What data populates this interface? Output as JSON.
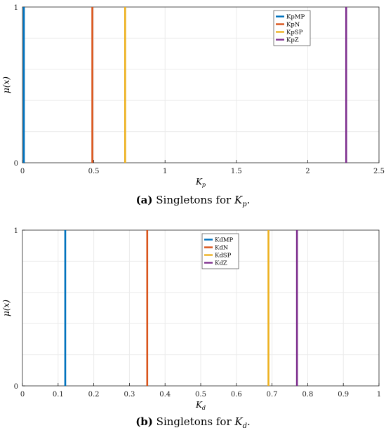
{
  "charts": [
    {
      "caption": {
        "label": "(a)",
        "text": "Singletons for ",
        "var": "K",
        "sub": "p",
        "end": "."
      },
      "chart_data": {
        "type": "line",
        "xlabel": "K",
        "xlabel_sub": "p",
        "ylabel": "μ(x)",
        "xlim": [
          0,
          2.5
        ],
        "ylim": [
          0,
          1
        ],
        "xticks": [
          "0",
          "0.5",
          "1",
          "1.5",
          "2",
          "2.5"
        ],
        "yticks": [
          "0",
          "1"
        ],
        "grid": true,
        "legend_position": "top-right",
        "series": [
          {
            "name": "KpMP",
            "x": 0.01,
            "color": "#0072BD"
          },
          {
            "name": "KpN",
            "x": 0.49,
            "color": "#D95319"
          },
          {
            "name": "KpSP",
            "x": 0.72,
            "color": "#EDB120"
          },
          {
            "name": "KpZ",
            "x": 2.27,
            "color": "#7E2F8E"
          }
        ]
      }
    },
    {
      "caption": {
        "label": "(b)",
        "text": "Singletons for ",
        "var": "K",
        "sub": "d",
        "end": "."
      },
      "chart_data": {
        "type": "line",
        "xlabel": "K",
        "xlabel_sub": "d",
        "ylabel": "μ(x)",
        "xlim": [
          0,
          1
        ],
        "ylim": [
          0,
          1
        ],
        "xticks": [
          "0",
          "0.1",
          "0.2",
          "0.3",
          "0.4",
          "0.5",
          "0.6",
          "0.7",
          "0.8",
          "0.9",
          "1"
        ],
        "yticks": [
          "0",
          "1"
        ],
        "grid": true,
        "legend_position": "top-center",
        "series": [
          {
            "name": "KdMP",
            "x": 0.12,
            "color": "#0072BD"
          },
          {
            "name": "KdN",
            "x": 0.35,
            "color": "#D95319"
          },
          {
            "name": "KdSP",
            "x": 0.69,
            "color": "#EDB120"
          },
          {
            "name": "KdZ",
            "x": 0.77,
            "color": "#7E2F8E"
          }
        ]
      }
    }
  ]
}
